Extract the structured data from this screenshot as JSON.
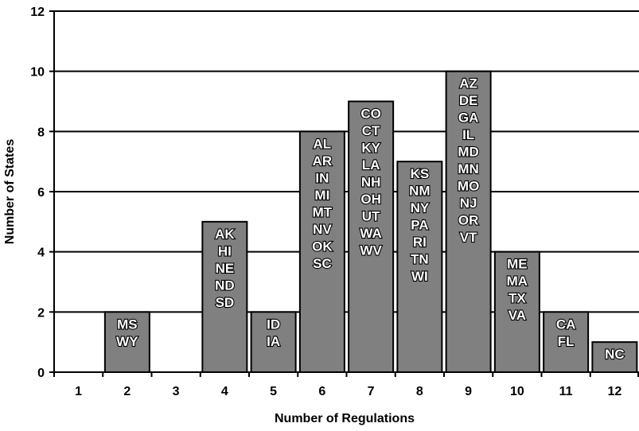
{
  "chart_data": {
    "type": "bar",
    "xlabel": "Number of Regulations",
    "ylabel": "Number of States",
    "ylim": [
      0,
      12
    ],
    "yticks": [
      0,
      2,
      4,
      6,
      8,
      10,
      12
    ],
    "grid": "horizontal",
    "bar_color": "#808080",
    "categories": [
      "1",
      "2",
      "3",
      "4",
      "5",
      "6",
      "7",
      "8",
      "9",
      "10",
      "11",
      "12"
    ],
    "values": [
      0,
      2,
      0,
      5,
      2,
      8,
      9,
      7,
      10,
      4,
      2,
      1
    ],
    "bar_labels": [
      [],
      [
        "MS",
        "WY"
      ],
      [],
      [
        "AK",
        "HI",
        "NE",
        "ND",
        "SD"
      ],
      [
        "ID",
        "IA"
      ],
      [
        "AL",
        "AR",
        "IN",
        "MI",
        "MT",
        "NV",
        "OK",
        "SC"
      ],
      [
        "CO",
        "CT",
        "KY",
        "LA",
        "NH",
        "OH",
        "UT",
        "WA",
        "WV"
      ],
      [
        "KS",
        "NM",
        "NY",
        "PA",
        "RI",
        "TN",
        "WI"
      ],
      [
        "AZ",
        "DE",
        "GA",
        "IL",
        "MD",
        "MN",
        "MO",
        "NJ",
        "OR",
        "VT"
      ],
      [
        "ME",
        "MA",
        "TX",
        "VA"
      ],
      [
        "CA",
        "FL"
      ],
      [
        "NC"
      ]
    ]
  }
}
